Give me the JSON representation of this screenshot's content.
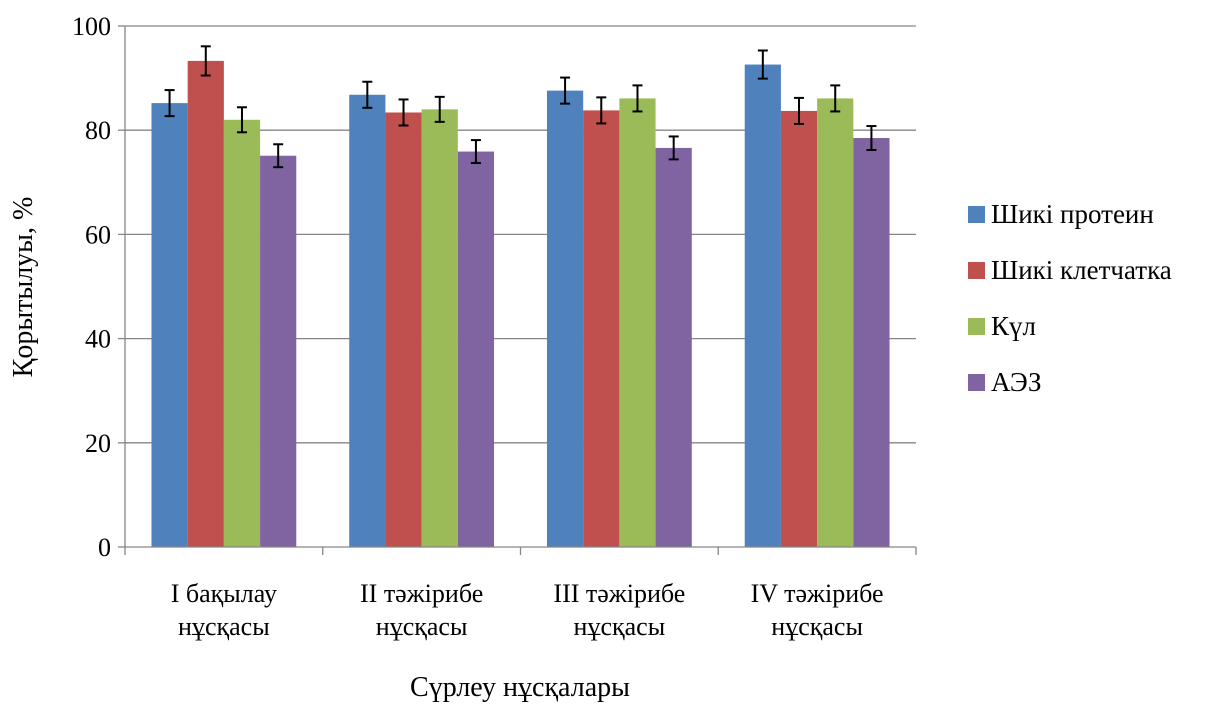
{
  "chart_data": {
    "type": "bar",
    "title": "",
    "xlabel": "Сүрлеу нұсқалары",
    "ylabel": "Қорытылуы, %",
    "ylim": [
      0,
      100
    ],
    "yticks": [
      "0",
      "20",
      "40",
      "60",
      "80",
      "100"
    ],
    "grid": true,
    "legend_position": "right",
    "categories": [
      [
        "I бақылау",
        "нұсқасы"
      ],
      [
        "II тәжірибе",
        "нұсқасы"
      ],
      [
        "III тәжірибе",
        "нұсқасы"
      ],
      [
        "IV тәжірибе",
        "нұсқасы"
      ]
    ],
    "error_bars": true,
    "series": [
      {
        "name": "Шикі протеин",
        "color": "#4F81BD",
        "values": [
          85.2,
          86.8,
          87.6,
          92.6
        ],
        "errors": [
          2.5,
          2.5,
          2.5,
          2.7
        ]
      },
      {
        "name": "Шикі клетчатка",
        "color": "#C0504D",
        "values": [
          93.3,
          83.4,
          83.8,
          83.7
        ],
        "errors": [
          2.8,
          2.5,
          2.5,
          2.5
        ]
      },
      {
        "name": "Күл",
        "color": "#9BBB59",
        "values": [
          82.0,
          84.0,
          86.1,
          86.1
        ],
        "errors": [
          2.4,
          2.4,
          2.5,
          2.5
        ]
      },
      {
        "name": "АЭЗ",
        "color": "#8064A2",
        "values": [
          75.1,
          75.9,
          76.6,
          78.5
        ],
        "errors": [
          2.2,
          2.2,
          2.2,
          2.3
        ]
      }
    ]
  }
}
